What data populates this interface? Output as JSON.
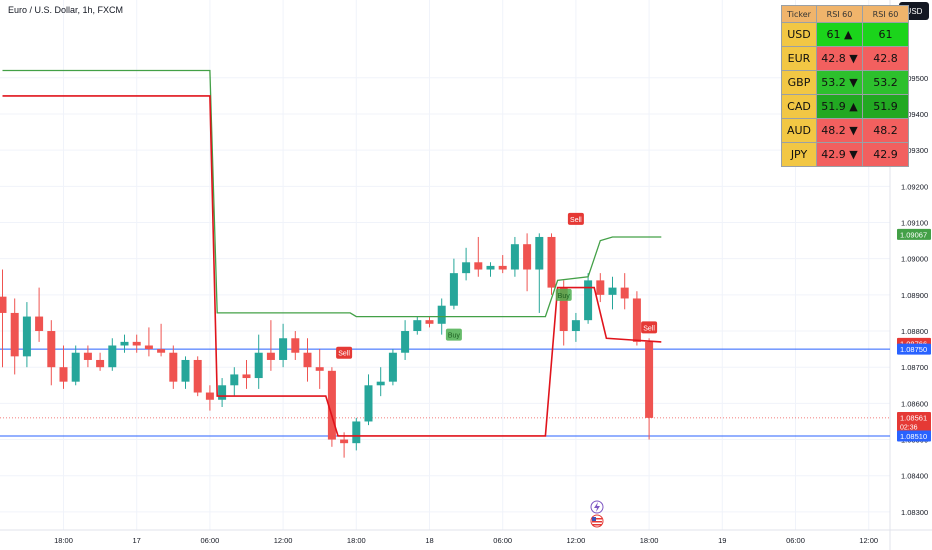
{
  "header": {
    "symbol_title": "Euro / U.S. Dollar, 1h, FXCM",
    "currency_button": "USD"
  },
  "rsi_table": {
    "headers": [
      "Ticker",
      "RSI 60",
      "RSI 60"
    ],
    "rows": [
      {
        "ticker": "USD",
        "value1": "61 ▲",
        "value2": "61",
        "color": "#1bd41b"
      },
      {
        "ticker": "EUR",
        "value1": "42.8 ▼",
        "value2": "42.8",
        "color": "#f2605f"
      },
      {
        "ticker": "GBP",
        "value1": "53.2 ▼",
        "value2": "53.2",
        "color": "#2dc02d"
      },
      {
        "ticker": "CAD",
        "value1": "51.9 ▲",
        "value2": "51.9",
        "color": "#22a822"
      },
      {
        "ticker": "AUD",
        "value1": "48.2 ▼",
        "value2": "48.2",
        "color": "#f2605f"
      },
      {
        "ticker": "JPY",
        "value1": "42.9 ▼",
        "value2": "42.9",
        "color": "#f2605f"
      }
    ]
  },
  "chart_data": {
    "type": "candlestick",
    "ylim": [
      1.0825,
      1.09715
    ],
    "x_tick_labels": [
      {
        "x": 0,
        "label": "18:00"
      },
      {
        "x": 6,
        "label": "17"
      },
      {
        "x": 12,
        "label": "06:00"
      },
      {
        "x": 18,
        "label": "12:00"
      },
      {
        "x": 24,
        "label": "18:00"
      },
      {
        "x": 30,
        "label": "18"
      },
      {
        "x": 36,
        "label": "06:00"
      },
      {
        "x": 42,
        "label": "12:00"
      },
      {
        "x": 48,
        "label": "18:00"
      },
      {
        "x": 54,
        "label": "19"
      },
      {
        "x": 60,
        "label": "06:00"
      },
      {
        "x": 66,
        "label": "12:00"
      }
    ],
    "y_tick_labels": [
      "1.08300",
      "1.08400",
      "1.08500",
      "1.08600",
      "1.08700",
      "1.08800",
      "1.08900",
      "1.09000",
      "1.09100",
      "1.09200",
      "1.09300",
      "1.09400",
      "1.09500"
    ],
    "candles": [
      {
        "x": -5,
        "o": 1.08895,
        "h": 1.0897,
        "l": 1.087,
        "c": 1.0885
      },
      {
        "x": -4,
        "o": 1.0885,
        "h": 1.0889,
        "l": 1.0868,
        "c": 1.0873
      },
      {
        "x": -3,
        "o": 1.0873,
        "h": 1.0888,
        "l": 1.087,
        "c": 1.0884
      },
      {
        "x": -2,
        "o": 1.0884,
        "h": 1.0892,
        "l": 1.0877,
        "c": 1.088
      },
      {
        "x": -1,
        "o": 1.088,
        "h": 1.0883,
        "l": 1.0865,
        "c": 1.087
      },
      {
        "x": 0,
        "o": 1.087,
        "h": 1.0876,
        "l": 1.0864,
        "c": 1.0866
      },
      {
        "x": 1,
        "o": 1.0866,
        "h": 1.0876,
        "l": 1.0865,
        "c": 1.0874
      },
      {
        "x": 2,
        "o": 1.0874,
        "h": 1.0876,
        "l": 1.087,
        "c": 1.0872
      },
      {
        "x": 3,
        "o": 1.0872,
        "h": 1.0874,
        "l": 1.0869,
        "c": 1.087
      },
      {
        "x": 4,
        "o": 1.087,
        "h": 1.0878,
        "l": 1.0869,
        "c": 1.0876
      },
      {
        "x": 5,
        "o": 1.0876,
        "h": 1.0879,
        "l": 1.0874,
        "c": 1.0877
      },
      {
        "x": 6,
        "o": 1.0877,
        "h": 1.0879,
        "l": 1.0874,
        "c": 1.0876
      },
      {
        "x": 7,
        "o": 1.0876,
        "h": 1.0881,
        "l": 1.0873,
        "c": 1.0875
      },
      {
        "x": 8,
        "o": 1.0875,
        "h": 1.0882,
        "l": 1.0873,
        "c": 1.0874
      },
      {
        "x": 9,
        "o": 1.0874,
        "h": 1.0876,
        "l": 1.0864,
        "c": 1.0866
      },
      {
        "x": 10,
        "o": 1.0866,
        "h": 1.0873,
        "l": 1.0864,
        "c": 1.0872
      },
      {
        "x": 11,
        "o": 1.0872,
        "h": 1.0873,
        "l": 1.0862,
        "c": 1.0863
      },
      {
        "x": 12,
        "o": 1.0863,
        "h": 1.0865,
        "l": 1.0858,
        "c": 1.0861
      },
      {
        "x": 13,
        "o": 1.0861,
        "h": 1.0867,
        "l": 1.0859,
        "c": 1.0865
      },
      {
        "x": 14,
        "o": 1.0865,
        "h": 1.087,
        "l": 1.0862,
        "c": 1.0868
      },
      {
        "x": 15,
        "o": 1.0868,
        "h": 1.0872,
        "l": 1.0864,
        "c": 1.0867
      },
      {
        "x": 16,
        "o": 1.0867,
        "h": 1.0879,
        "l": 1.0864,
        "c": 1.0874
      },
      {
        "x": 17,
        "o": 1.0874,
        "h": 1.0883,
        "l": 1.0869,
        "c": 1.0872
      },
      {
        "x": 18,
        "o": 1.0872,
        "h": 1.0882,
        "l": 1.087,
        "c": 1.0878
      },
      {
        "x": 19,
        "o": 1.0878,
        "h": 1.088,
        "l": 1.0872,
        "c": 1.0874
      },
      {
        "x": 20,
        "o": 1.0874,
        "h": 1.0878,
        "l": 1.0866,
        "c": 1.087
      },
      {
        "x": 21,
        "o": 1.087,
        "h": 1.0875,
        "l": 1.0864,
        "c": 1.0869
      },
      {
        "x": 22,
        "o": 1.0869,
        "h": 1.087,
        "l": 1.0848,
        "c": 1.085
      },
      {
        "x": 23,
        "o": 1.085,
        "h": 1.0852,
        "l": 1.0845,
        "c": 1.0849
      },
      {
        "x": 24,
        "o": 1.0849,
        "h": 1.0856,
        "l": 1.0847,
        "c": 1.0855
      },
      {
        "x": 25,
        "o": 1.0855,
        "h": 1.0868,
        "l": 1.0854,
        "c": 1.0865
      },
      {
        "x": 26,
        "o": 1.0865,
        "h": 1.087,
        "l": 1.0862,
        "c": 1.0866
      },
      {
        "x": 27,
        "o": 1.0866,
        "h": 1.0875,
        "l": 1.0865,
        "c": 1.0874
      },
      {
        "x": 28,
        "o": 1.0874,
        "h": 1.0883,
        "l": 1.0872,
        "c": 1.088
      },
      {
        "x": 29,
        "o": 1.088,
        "h": 1.0884,
        "l": 1.0879,
        "c": 1.0883
      },
      {
        "x": 30,
        "o": 1.0883,
        "h": 1.0884,
        "l": 1.0881,
        "c": 1.0882
      },
      {
        "x": 31,
        "o": 1.0882,
        "h": 1.0889,
        "l": 1.0879,
        "c": 1.0887
      },
      {
        "x": 32,
        "o": 1.0887,
        "h": 1.09,
        "l": 1.0886,
        "c": 1.0896
      },
      {
        "x": 33,
        "o": 1.0896,
        "h": 1.0903,
        "l": 1.0894,
        "c": 1.0899
      },
      {
        "x": 34,
        "o": 1.0899,
        "h": 1.0906,
        "l": 1.0895,
        "c": 1.0897
      },
      {
        "x": 35,
        "o": 1.0897,
        "h": 1.0899,
        "l": 1.0895,
        "c": 1.0898
      },
      {
        "x": 36,
        "o": 1.0898,
        "h": 1.0901,
        "l": 1.0896,
        "c": 1.0897
      },
      {
        "x": 37,
        "o": 1.0897,
        "h": 1.0906,
        "l": 1.0895,
        "c": 1.0904
      },
      {
        "x": 38,
        "o": 1.0904,
        "h": 1.0907,
        "l": 1.0891,
        "c": 1.0897
      },
      {
        "x": 39,
        "o": 1.0897,
        "h": 1.0907,
        "l": 1.0885,
        "c": 1.0906
      },
      {
        "x": 40,
        "o": 1.0906,
        "h": 1.0907,
        "l": 1.089,
        "c": 1.0892
      },
      {
        "x": 41,
        "o": 1.0892,
        "h": 1.0894,
        "l": 1.0876,
        "c": 1.088
      },
      {
        "x": 42,
        "o": 1.088,
        "h": 1.0885,
        "l": 1.0877,
        "c": 1.0883
      },
      {
        "x": 43,
        "o": 1.0883,
        "h": 1.0896,
        "l": 1.0882,
        "c": 1.0894
      },
      {
        "x": 44,
        "o": 1.0894,
        "h": 1.0896,
        "l": 1.0888,
        "c": 1.089
      },
      {
        "x": 45,
        "o": 1.089,
        "h": 1.0895,
        "l": 1.0886,
        "c": 1.0892
      },
      {
        "x": 46,
        "o": 1.0892,
        "h": 1.0896,
        "l": 1.0886,
        "c": 1.0889
      },
      {
        "x": 47,
        "o": 1.0889,
        "h": 1.0891,
        "l": 1.0876,
        "c": 1.0877
      },
      {
        "x": 48,
        "o": 1.0877,
        "h": 1.0878,
        "l": 1.085,
        "c": 1.0856
      }
    ],
    "upper_band": [
      [
        -5,
        1.0952
      ],
      [
        12,
        1.0952
      ],
      [
        12.6,
        1.0885
      ],
      [
        23.5,
        1.0885
      ],
      [
        24,
        1.0884
      ],
      [
        39.5,
        1.0884
      ],
      [
        40.5,
        1.0894
      ],
      [
        43,
        1.0895
      ],
      [
        44,
        1.0905
      ],
      [
        45,
        1.0906
      ],
      [
        49,
        1.0906
      ]
    ],
    "lower_band": [
      [
        -5,
        1.0945
      ],
      [
        12,
        1.0945
      ],
      [
        12.6,
        1.0862
      ],
      [
        21.5,
        1.0862
      ],
      [
        22.5,
        1.0851
      ],
      [
        39.5,
        1.0851
      ],
      [
        40.5,
        1.0892
      ],
      [
        43.5,
        1.0892
      ],
      [
        44.5,
        1.0878
      ],
      [
        49,
        1.0877
      ]
    ],
    "horizontal_lines": [
      {
        "price": 1.0875,
        "color": "#2962ff"
      },
      {
        "price": 1.0851,
        "color": "#2962ff"
      }
    ],
    "signals": [
      {
        "type": "Sell",
        "x": 23,
        "price": 1.0874
      },
      {
        "type": "Buy",
        "x": 32,
        "price": 1.0879
      },
      {
        "type": "Sell",
        "x": 42,
        "price": 1.0911
      },
      {
        "type": "Buy",
        "x": 41,
        "price": 1.089
      },
      {
        "type": "Sell",
        "x": 48,
        "price": 1.0881
      }
    ],
    "price_labels": [
      {
        "text": "1.09067",
        "price": 1.09067,
        "color": "#43a047"
      },
      {
        "text": "1.08766",
        "price": 1.08766,
        "color": "#e53935"
      },
      {
        "text": "1.08750",
        "price": 1.0875,
        "color": "#2962ff"
      },
      {
        "text": "1.08561",
        "subtext": "02:36",
        "price": 1.08561,
        "color": "#e53935"
      },
      {
        "text": "1.08510",
        "price": 1.0851,
        "color": "#2962ff"
      }
    ],
    "colors": {
      "up": "#26a69a",
      "down": "#ef5350",
      "upper_band": "#43a047",
      "lower_band": "#e0141c"
    }
  }
}
